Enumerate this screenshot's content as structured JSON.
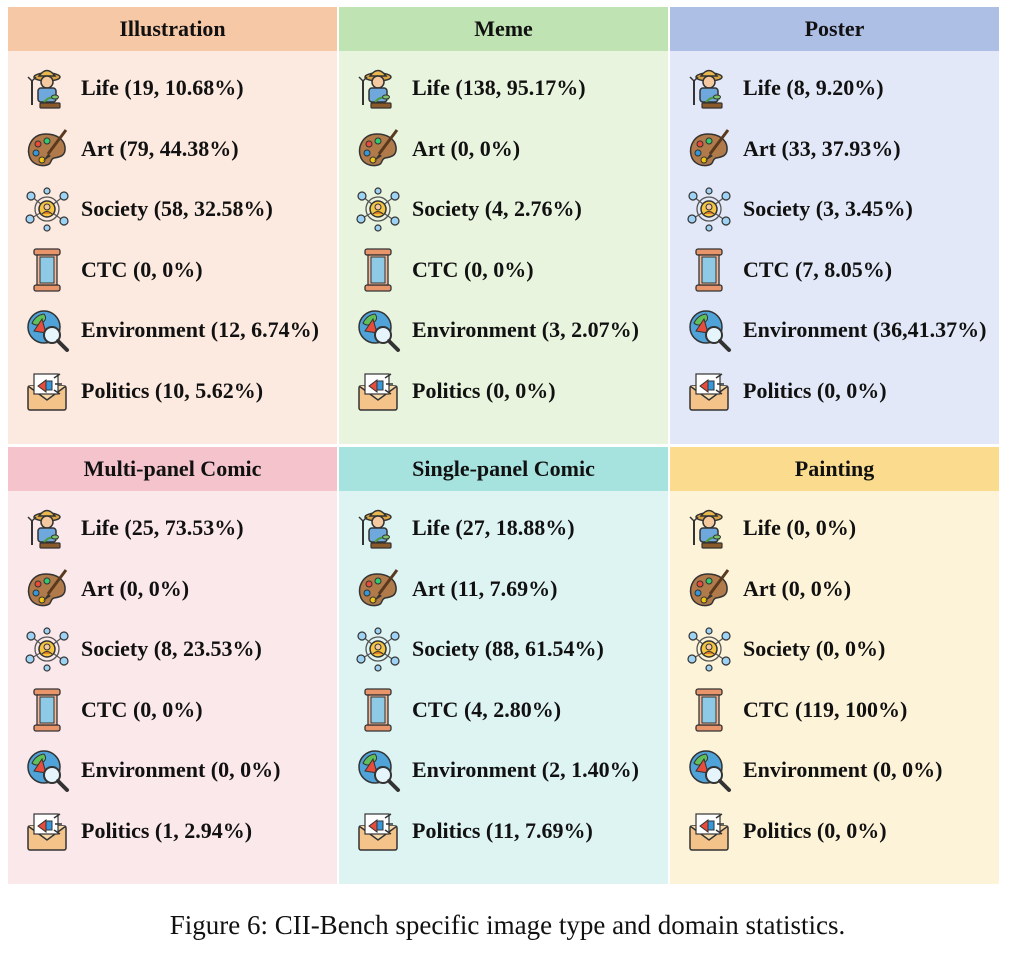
{
  "panels": [
    {
      "title": "Illustration",
      "header_color": "#f7c8a6",
      "body_color": "#fce9e0",
      "items": [
        {
          "icon": "life-icon",
          "label": "Life (19, 10.68%)"
        },
        {
          "icon": "art-icon",
          "label": "Art (79, 44.38%)"
        },
        {
          "icon": "society-icon",
          "label": "Society (58, 32.58%)"
        },
        {
          "icon": "ctc-icon",
          "label": "CTC (0, 0%)"
        },
        {
          "icon": "environment-icon",
          "label": "Environment (12, 6.74%)"
        },
        {
          "icon": "politics-icon",
          "label": "Politics (10, 5.62%)"
        }
      ]
    },
    {
      "title": "Meme",
      "header_color": "#bfe3b3",
      "body_color": "#e9f4df",
      "items": [
        {
          "icon": "life-icon",
          "label": "Life (138, 95.17%)"
        },
        {
          "icon": "art-icon",
          "label": "Art (0, 0%)"
        },
        {
          "icon": "society-icon",
          "label": "Society (4, 2.76%)"
        },
        {
          "icon": "ctc-icon",
          "label": "CTC (0, 0%)"
        },
        {
          "icon": "environment-icon",
          "label": "Environment (3, 2.07%)"
        },
        {
          "icon": "politics-icon",
          "label": "Politics (0, 0%)"
        }
      ]
    },
    {
      "title": "Poster",
      "header_color": "#aebfe6",
      "body_color": "#e2e8f7",
      "items": [
        {
          "icon": "life-icon",
          "label": "Life (8, 9.20%)"
        },
        {
          "icon": "art-icon",
          "label": "Art (33, 37.93%)"
        },
        {
          "icon": "society-icon",
          "label": "Society (3, 3.45%)"
        },
        {
          "icon": "ctc-icon",
          "label": "CTC (7, 8.05%)"
        },
        {
          "icon": "environment-icon",
          "label": "Environment (36,41.37%)"
        },
        {
          "icon": "politics-icon",
          "label": "Politics (0, 0%)"
        }
      ]
    },
    {
      "title": "Multi-panel Comic",
      "header_color": "#f4c3cb",
      "body_color": "#fbe8eb",
      "items": [
        {
          "icon": "life-icon",
          "label": "Life (25, 73.53%)"
        },
        {
          "icon": "art-icon",
          "label": "Art (0, 0%)"
        },
        {
          "icon": "society-icon",
          "label": "Society (8, 23.53%)"
        },
        {
          "icon": "ctc-icon",
          "label": "CTC (0, 0%)"
        },
        {
          "icon": "environment-icon",
          "label": "Environment (0, 0%)"
        },
        {
          "icon": "politics-icon",
          "label": "Politics (1, 2.94%)"
        }
      ]
    },
    {
      "title": "Single-panel Comic",
      "header_color": "#a6e3df",
      "body_color": "#def4f3",
      "items": [
        {
          "icon": "life-icon",
          "label": "Life (27, 18.88%)"
        },
        {
          "icon": "art-icon",
          "label": "Art (11, 7.69%)"
        },
        {
          "icon": "society-icon",
          "label": "Society (88, 61.54%)"
        },
        {
          "icon": "ctc-icon",
          "label": "CTC (4, 2.80%)"
        },
        {
          "icon": "environment-icon",
          "label": "Environment (2, 1.40%)"
        },
        {
          "icon": "politics-icon",
          "label": "Politics (11, 7.69%)"
        }
      ]
    },
    {
      "title": "Painting",
      "header_color": "#fbdc8e",
      "body_color": "#fdf3d8",
      "items": [
        {
          "icon": "life-icon",
          "label": "Life (0, 0%)"
        },
        {
          "icon": "art-icon",
          "label": "Art (0, 0%)"
        },
        {
          "icon": "society-icon",
          "label": "Society (0, 0%)"
        },
        {
          "icon": "ctc-icon",
          "label": "CTC (119, 100%)"
        },
        {
          "icon": "environment-icon",
          "label": "Environment (0, 0%)"
        },
        {
          "icon": "politics-icon",
          "label": "Politics (0, 0%)"
        }
      ]
    }
  ],
  "caption": "Figure 6: CII-Bench specific image type and domain statistics."
}
